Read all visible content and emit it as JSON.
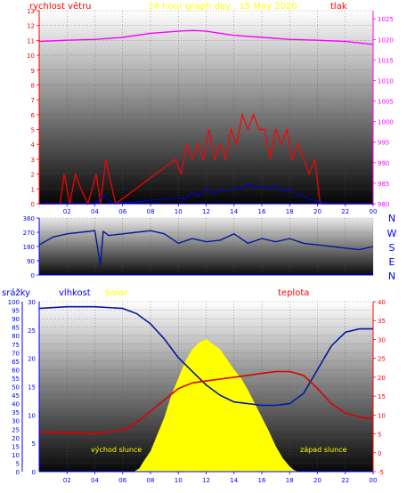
{
  "top_panel": {
    "title": "24 hour graph day , 15 May 2020",
    "left_label": "rychlost větru",
    "right_label": "tlak"
  },
  "mid_panel": {
    "compass": [
      "N",
      "W",
      "S",
      "E",
      "N"
    ]
  },
  "bottom_panel": {
    "label_rain": "srážky",
    "label_humidity": "vlhkost",
    "label_solar": "Solar",
    "label_temp": "teplota",
    "sunrise": "východ slunce",
    "sunset": "západ slunce"
  },
  "colors": {
    "wind": "#ff0000",
    "wind_avg": "#0000cc",
    "pressure": "#ff00ff",
    "direction": "#001a99",
    "humidity": "#001a99",
    "temperature": "#dd0000",
    "solar": "#ffff00",
    "axis_left": "#0000ff",
    "axis_right": "#ff00ff",
    "title": "#ffff00"
  },
  "chart_data": [
    {
      "type": "line",
      "name": "wind_pressure",
      "x_ticks": [
        "02",
        "04",
        "06",
        "08",
        "10",
        "12",
        "14",
        "16",
        "18",
        "20",
        "22",
        "00"
      ],
      "y_left": {
        "label": "rychlost větru",
        "ticks": [
          0,
          1,
          2,
          3,
          4,
          5,
          6,
          7,
          8,
          9,
          10,
          11,
          12,
          13
        ],
        "lim": [
          0,
          13
        ]
      },
      "y_right": {
        "label": "tlak",
        "ticks": [
          980,
          985,
          990,
          995,
          1000,
          1005,
          1010,
          1015,
          1020,
          1025
        ],
        "lim": [
          980,
          1027
        ]
      },
      "series": [
        {
          "name": "tlak",
          "x": [
            0,
            2,
            4,
            6,
            8,
            10,
            11,
            12,
            14,
            16,
            18,
            20,
            22,
            24
          ],
          "values": [
            1019.5,
            1019.8,
            1020.0,
            1020.5,
            1021.5,
            1022.0,
            1022.2,
            1022.0,
            1021.0,
            1020.5,
            1020.0,
            1019.8,
            1019.5,
            1018.8
          ]
        },
        {
          "name": "rychlost větru",
          "x": [
            0,
            1.5,
            1.8,
            2.2,
            2.6,
            3.0,
            3.5,
            4.1,
            4.4,
            4.8,
            5.0,
            5.5,
            9.8,
            10.2,
            10.6,
            11.0,
            11.4,
            11.8,
            12.2,
            12.6,
            13.0,
            13.4,
            13.8,
            14.2,
            14.6,
            15.0,
            15.4,
            15.8,
            16.2,
            16.6,
            17.0,
            17.4,
            17.8,
            18.2,
            18.6,
            19.0,
            19.4,
            19.8,
            20.2,
            24
          ],
          "values": [
            0,
            0,
            2,
            0,
            2,
            1,
            0,
            2,
            0,
            3,
            2,
            0,
            3,
            2,
            4,
            3,
            4,
            3,
            5,
            3,
            4,
            3,
            5,
            4,
            6,
            5,
            6,
            5,
            5,
            3,
            5,
            4,
            5,
            3,
            4,
            3,
            2,
            3,
            0,
            0
          ]
        },
        {
          "name": "průměr",
          "x": [
            0,
            4,
            4.6,
            5.0,
            5.4,
            10,
            10.5,
            11,
            11.5,
            12,
            12.5,
            13,
            13.5,
            14,
            14.5,
            15,
            15.5,
            16,
            16.5,
            17,
            17.5,
            18,
            18.5,
            19,
            19.5,
            20,
            20.5,
            24
          ],
          "values": [
            0,
            0,
            0.6,
            0.2,
            0,
            0.4,
            0.3,
            0.8,
            0.5,
            1.0,
            0.7,
            0.9,
            0.8,
            1.1,
            1.0,
            1.3,
            1.1,
            1.2,
            1.0,
            1.2,
            0.8,
            1.0,
            0.6,
            0.5,
            0.3,
            0.2,
            0,
            0
          ]
        }
      ]
    },
    {
      "type": "line",
      "name": "wind_direction",
      "y_ticks": [
        0,
        90,
        180,
        270,
        360
      ],
      "ylim": [
        0,
        360
      ],
      "series": [
        {
          "name": "směr větru",
          "x": [
            0,
            1,
            2,
            3,
            4,
            4.4,
            4.6,
            5,
            6,
            7,
            8,
            9,
            10,
            11,
            12,
            13,
            14,
            15,
            16,
            17,
            18,
            19,
            20,
            21,
            22,
            23,
            24
          ],
          "values": [
            190,
            240,
            260,
            270,
            280,
            60,
            275,
            250,
            260,
            270,
            280,
            260,
            200,
            230,
            210,
            220,
            260,
            200,
            230,
            210,
            230,
            200,
            190,
            180,
            170,
            160,
            180
          ]
        }
      ]
    },
    {
      "type": "line",
      "name": "humidity_temperature_solar",
      "x_ticks": [
        "02",
        "04",
        "06",
        "08",
        "10",
        "12",
        "14",
        "16",
        "18",
        "20",
        "22",
        "00"
      ],
      "y_left_rain": {
        "label": "srážky",
        "ticks": [
          0,
          5,
          10,
          15,
          20,
          25,
          30,
          35,
          40,
          45,
          50,
          55,
          60,
          65,
          70,
          75,
          80,
          85,
          90,
          95,
          100
        ],
        "lim": [
          0,
          100
        ]
      },
      "y_left_humidity": {
        "label": "vlhkost",
        "ticks": [
          0,
          5,
          10,
          15,
          20,
          25,
          30
        ],
        "lim": [
          0,
          30
        ]
      },
      "y_right": {
        "label": "teplota",
        "ticks": [
          -5,
          0,
          5,
          10,
          15,
          20,
          25,
          30,
          35,
          40
        ],
        "lim": [
          -5,
          40
        ]
      },
      "series": [
        {
          "name": "vlhkost",
          "x": [
            0,
            2,
            4,
            6,
            7,
            8,
            9,
            10,
            11,
            12,
            13,
            14,
            15,
            16,
            17,
            18,
            19,
            20,
            21,
            22,
            23,
            24
          ],
          "values": [
            96,
            97,
            97,
            96,
            93,
            87,
            78,
            67,
            59,
            51,
            45,
            41,
            40,
            39,
            39,
            40,
            46,
            60,
            74,
            82,
            84,
            84
          ]
        },
        {
          "name": "teplota",
          "x": [
            0,
            2,
            4,
            6,
            7,
            8,
            9,
            10,
            11,
            12,
            13,
            14,
            15,
            16,
            17,
            18,
            19,
            20,
            21,
            22,
            23,
            24
          ],
          "values": [
            5.5,
            5.3,
            5.0,
            6.0,
            8.0,
            11.0,
            14.0,
            17.0,
            18.5,
            19.0,
            19.5,
            20.0,
            20.5,
            21.0,
            21.5,
            21.5,
            20.5,
            17.0,
            13.0,
            10.5,
            9.5,
            9.0
          ]
        },
        {
          "name": "Solar",
          "x": [
            0,
            6.8,
            7.2,
            7.5,
            8,
            8.5,
            9,
            9.5,
            10,
            10.5,
            11,
            11.5,
            12,
            12.5,
            13,
            13.5,
            14,
            14.5,
            15,
            15.5,
            16,
            16.5,
            17,
            17.5,
            18,
            18.3,
            18.6,
            24
          ],
          "values": [
            0,
            0,
            2,
            6,
            12,
            22,
            32,
            45,
            55,
            65,
            72,
            76,
            78,
            75,
            72,
            66,
            60,
            55,
            48,
            40,
            32,
            24,
            15,
            8,
            3,
            1,
            0,
            0
          ]
        }
      ]
    }
  ]
}
